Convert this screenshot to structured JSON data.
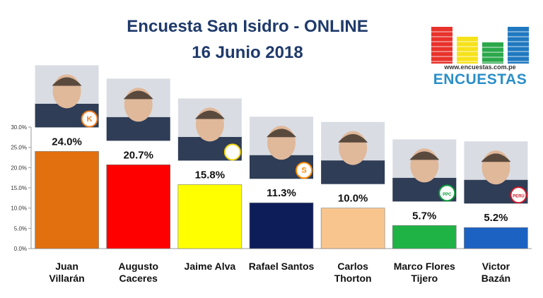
{
  "header": {
    "title": "Encuesta San Isidro - ONLINE",
    "subtitle": "16 Junio 2018"
  },
  "logo": {
    "url": "www.encuestas.com.pe",
    "name": "ENCUESTAS",
    "bar_colors": [
      "#e8322b",
      "#f6e21a",
      "#2aa84a",
      "#2079c0"
    ]
  },
  "chart_data": {
    "type": "bar",
    "title": "Encuesta San Isidro - ONLINE",
    "subtitle": "16 Junio 2018",
    "ylim": [
      0,
      30
    ],
    "yticks": [
      "0.0%",
      "5.0%",
      "10.0%",
      "15.0%",
      "20.0%",
      "25.0%",
      "30.0%"
    ],
    "grid": false,
    "categories": [
      [
        "Juan",
        "Villarán"
      ],
      [
        "Augusto",
        "Caceres"
      ],
      [
        "Jaime Alva"
      ],
      [
        "Rafael Santos"
      ],
      [
        "Carlos",
        "Thorton"
      ],
      [
        "Marco Flores",
        "Tijero"
      ],
      [
        "Victor",
        "Bazán"
      ]
    ],
    "values": [
      24.0,
      20.7,
      15.8,
      11.3,
      10.0,
      5.7,
      5.2
    ],
    "labels": [
      "24.0%",
      "20.7%",
      "15.8%",
      "11.3%",
      "10.0%",
      "5.7%",
      "5.2%"
    ],
    "colors": [
      "#e2700e",
      "#ff0000",
      "#ffff00",
      "#0d1d5a",
      "#f9c58e",
      "#1fb345",
      "#1c62c3"
    ],
    "party_badges": [
      "K",
      "",
      "",
      "S",
      "",
      "PPC",
      "PERÚ"
    ],
    "badge_colors": [
      "#f07b1c",
      "",
      "#f2d30c",
      "#ff8a00",
      "",
      "#0a9b3a",
      "#d11b2a"
    ]
  }
}
